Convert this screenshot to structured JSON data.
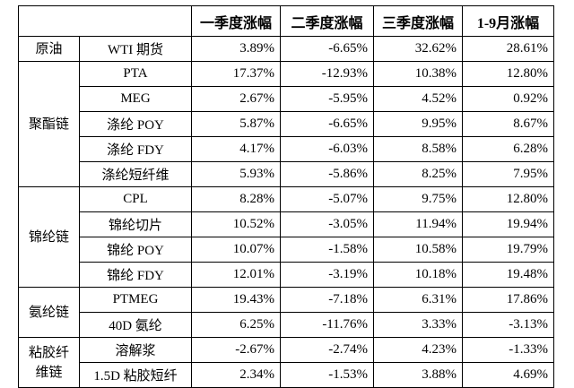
{
  "table": {
    "header": [
      "一季度涨幅",
      "二季度涨幅",
      "三季度涨幅",
      "1-9月涨幅"
    ],
    "groups": [
      {
        "name": "原油",
        "rows": [
          {
            "item": "WTI 期货",
            "values": [
              "3.89%",
              "-6.65%",
              "32.62%",
              "28.61%"
            ]
          }
        ]
      },
      {
        "name": "聚酯链",
        "rows": [
          {
            "item": "PTA",
            "values": [
              "17.37%",
              "-12.93%",
              "10.38%",
              "12.80%"
            ]
          },
          {
            "item": "MEG",
            "values": [
              "2.67%",
              "-5.95%",
              "4.52%",
              "0.92%"
            ]
          },
          {
            "item": "涤纶 POY",
            "values": [
              "5.87%",
              "-6.65%",
              "9.95%",
              "8.67%"
            ]
          },
          {
            "item": "涤纶 FDY",
            "values": [
              "4.17%",
              "-6.03%",
              "8.58%",
              "6.28%"
            ]
          },
          {
            "item": "涤纶短纤维",
            "values": [
              "5.93%",
              "-5.86%",
              "8.25%",
              "7.95%"
            ]
          }
        ]
      },
      {
        "name": "锦纶链",
        "rows": [
          {
            "item": "CPL",
            "values": [
              "8.28%",
              "-5.07%",
              "9.75%",
              "12.80%"
            ]
          },
          {
            "item": "锦纶切片",
            "values": [
              "10.52%",
              "-3.05%",
              "11.94%",
              "19.94%"
            ]
          },
          {
            "item": "锦纶 POY",
            "values": [
              "10.07%",
              "-1.58%",
              "10.58%",
              "19.79%"
            ]
          },
          {
            "item": "锦纶 FDY",
            "values": [
              "12.01%",
              "-3.19%",
              "10.18%",
              "19.48%"
            ]
          }
        ]
      },
      {
        "name": "氨纶链",
        "rows": [
          {
            "item": "PTMEG",
            "values": [
              "19.43%",
              "-7.18%",
              "6.31%",
              "17.86%"
            ]
          },
          {
            "item": "40D 氨纶",
            "values": [
              "6.25%",
              "-11.76%",
              "3.33%",
              "-3.13%"
            ]
          }
        ]
      },
      {
        "name": "粘胶纤维链",
        "rows": [
          {
            "item": "溶解浆",
            "values": [
              "-2.67%",
              "-2.74%",
              "4.23%",
              "-1.33%"
            ]
          },
          {
            "item": "1.5D 粘胶短纤",
            "values": [
              "2.34%",
              "-1.53%",
              "3.88%",
              "4.69%"
            ]
          }
        ]
      }
    ]
  }
}
